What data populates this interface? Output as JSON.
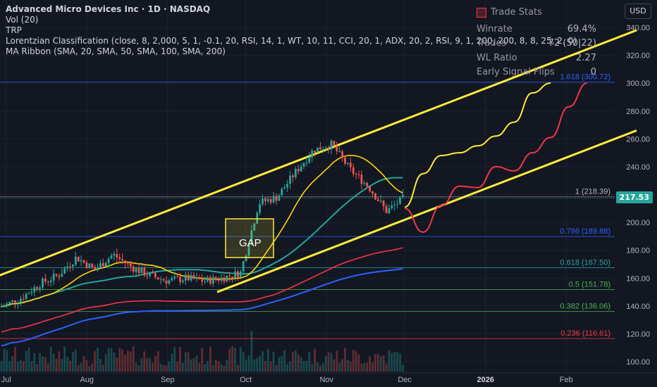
{
  "header": {
    "title": "Advanced Micro Devices Inc · 1D · NASDAQ",
    "indicators": [
      "Vol (20)",
      "TRP",
      "Lorentzian Classification (close, 8, 2,000, 5, 1, -0.1, 20, RSI, 14, 1, WT, 10, 11, CCI, 20, 1, ADX, 20, 2, RSI, 9, 1, 200, 200, 8, 8, 25, 2, 0)",
      "MA Ribbon (SMA, 20, SMA, 50, SMA, 100, SMA, 200)"
    ]
  },
  "currency_button": "USD",
  "trade_stats": {
    "title": "Trade Stats",
    "rows": [
      {
        "label": "Winrate",
        "value": "69.4%"
      },
      {
        "label": "Trades",
        "value": "72 (50|22)"
      },
      {
        "label": "WL Ratio",
        "value": "2.27"
      },
      {
        "label": "Early Signal Flips",
        "value": "0"
      }
    ]
  },
  "last_price": "217.53",
  "gap_label": "GAP",
  "colors": {
    "background": "#131722",
    "up": "#26a69a",
    "down": "#ef5350",
    "channel": "#ffeb3b",
    "ma20": "#ffd600",
    "ma50": "#26a69a",
    "ma100": "#f23645",
    "ma200": "#2962ff",
    "fib_line": "#2962ff"
  },
  "chart_data": {
    "type": "candlestick",
    "x_ticks": [
      "Jul",
      "Aug",
      "Sep",
      "Oct",
      "Nov",
      "Dec",
      "2026",
      "Feb"
    ],
    "y_ticks": [
      100,
      120,
      140,
      160,
      180,
      200,
      220,
      240,
      260,
      280,
      300,
      320,
      340
    ],
    "ylim": [
      95,
      350
    ],
    "fib_levels": [
      {
        "label": "1.618 (300.72)",
        "value": 300.72,
        "color": "#2962ff"
      },
      {
        "label": "1 (218.39)",
        "value": 218.39,
        "color": "#787b86"
      },
      {
        "label": "0.786 (189.88)",
        "value": 189.88,
        "color": "#2962ff"
      },
      {
        "label": "0.618 (167.50)",
        "value": 167.5,
        "color": "#26a69a"
      },
      {
        "label": "0.5 (151.78)",
        "value": 151.78,
        "color": "#4caf50"
      },
      {
        "label": "0.382 (136.06)",
        "value": 136.06,
        "color": "#4caf50"
      },
      {
        "label": "0.236 (116.61)",
        "value": 116.61,
        "color": "#f23645"
      }
    ],
    "current_price": 217.53,
    "price_path": [
      [
        "2025-06-23",
        137
      ],
      [
        "2025-06-30",
        140
      ],
      [
        "2025-07-07",
        146
      ],
      [
        "2025-07-14",
        156
      ],
      [
        "2025-07-21",
        162
      ],
      [
        "2025-07-28",
        175
      ],
      [
        "2025-08-04",
        166
      ],
      [
        "2025-08-11",
        177
      ],
      [
        "2025-08-18",
        168
      ],
      [
        "2025-08-25",
        162
      ],
      [
        "2025-09-01",
        158
      ],
      [
        "2025-09-08",
        160
      ],
      [
        "2025-09-15",
        158
      ],
      [
        "2025-09-22",
        160
      ],
      [
        "2025-09-29",
        164
      ],
      [
        "2025-10-06",
        214
      ],
      [
        "2025-10-13",
        218
      ],
      [
        "2025-10-20",
        236
      ],
      [
        "2025-10-27",
        252
      ],
      [
        "2025-11-03",
        256
      ],
      [
        "2025-11-10",
        238
      ],
      [
        "2025-11-17",
        226
      ],
      [
        "2025-11-24",
        208
      ],
      [
        "2025-12-01",
        218
      ]
    ],
    "projection_yellow": [
      [
        "2025-12-01",
        211
      ],
      [
        "2025-12-08",
        235
      ],
      [
        "2025-12-15",
        248
      ],
      [
        "2025-12-22",
        250
      ],
      [
        "2025-12-29",
        255
      ],
      [
        "2026-01-05",
        262
      ],
      [
        "2026-01-12",
        272
      ],
      [
        "2026-01-19",
        293
      ],
      [
        "2026-01-26",
        300
      ]
    ],
    "projection_red": [
      [
        "2025-12-01",
        210
      ],
      [
        "2025-12-08",
        193
      ],
      [
        "2025-12-15",
        212
      ],
      [
        "2025-12-22",
        226
      ],
      [
        "2025-12-29",
        225
      ],
      [
        "2026-01-05",
        240
      ],
      [
        "2026-01-12",
        237
      ],
      [
        "2026-01-19",
        250
      ],
      [
        "2026-01-26",
        261
      ],
      [
        "2026-02-02",
        283
      ],
      [
        "2026-02-09",
        300
      ]
    ],
    "channel_upper": [
      [
        "2025-06-23",
        158
      ],
      [
        "2026-02-28",
        338
      ]
    ],
    "channel_lower": [
      [
        "2025-09-20",
        150
      ],
      [
        "2026-02-28",
        266
      ]
    ],
    "annotations": [
      "GAP"
    ]
  }
}
